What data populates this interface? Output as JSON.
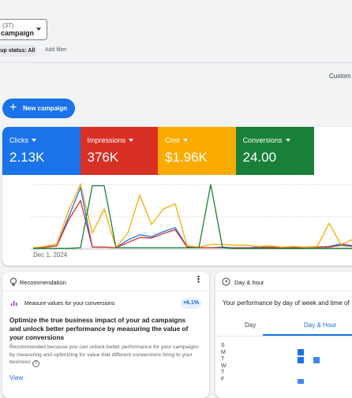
{
  "filters": {
    "campaign_count": "(37)",
    "campaign_label": "campaign",
    "status_chip": "oup status: All",
    "add_filter": "Add filter"
  },
  "date_range": "Custom",
  "new_campaign": "New campaign",
  "chart_data": {
    "type": "line",
    "categories": [
      "Dec 1, 2024",
      null,
      null,
      null,
      null,
      null,
      null,
      null,
      null,
      null,
      null,
      null,
      null,
      null,
      null,
      null,
      null,
      null,
      null,
      null,
      null,
      null,
      null,
      null,
      null,
      null,
      null,
      null
    ],
    "ylim": [
      0,
      100
    ],
    "series": [
      {
        "name": "Clicks",
        "total": "2.13K",
        "color": "#1a73e8",
        "values": [
          2,
          3,
          5,
          50,
          95,
          3,
          3,
          2,
          14,
          22,
          19,
          27,
          33,
          4,
          2,
          2,
          3,
          2,
          2,
          3,
          3,
          2,
          3,
          3,
          3,
          4,
          8,
          5
        ]
      },
      {
        "name": "Impressions",
        "total": "376K",
        "color": "#d93025",
        "values": [
          2,
          3,
          5,
          45,
          75,
          3,
          3,
          2,
          10,
          18,
          17,
          24,
          30,
          3,
          2,
          2,
          2,
          2,
          2,
          2,
          3,
          2,
          2,
          3,
          3,
          3,
          6,
          4
        ]
      },
      {
        "name": "Cost",
        "total": "$1.96K",
        "color": "#f9ab00",
        "values": [
          2,
          4,
          8,
          60,
          100,
          25,
          62,
          2,
          25,
          83,
          38,
          62,
          70,
          5,
          3,
          7,
          7,
          6,
          6,
          4,
          5,
          3,
          4,
          3,
          4,
          40,
          7,
          15
        ]
      },
      {
        "name": "Conversions",
        "total": "24.00",
        "color": "#188038",
        "values": [
          1,
          1,
          1,
          1,
          2,
          98,
          98,
          2,
          2,
          2,
          2,
          2,
          2,
          2,
          2,
          100,
          2,
          1,
          1,
          1,
          1,
          1,
          1,
          1,
          1,
          1,
          1,
          1
        ]
      }
    ]
  },
  "recommendation": {
    "header": "Recommendation",
    "item": "Measure values for your conversions",
    "badge": "+6.1%",
    "headline": "Optimize the true business impact of your ad campaigns and unlock better performance by measuring the value of your conversions",
    "detail": "Recommended because you can unlock better performance for your campaigns by measuring and optimizing for value that different conversions bring to your business",
    "action": "View"
  },
  "day_hour": {
    "header": "Day & hour",
    "subtitle": "Your performance by day of week and time of",
    "tabs": [
      "Day",
      "Day & Hour"
    ],
    "days": [
      "S",
      "M",
      "T",
      "W",
      "T",
      "F"
    ]
  }
}
